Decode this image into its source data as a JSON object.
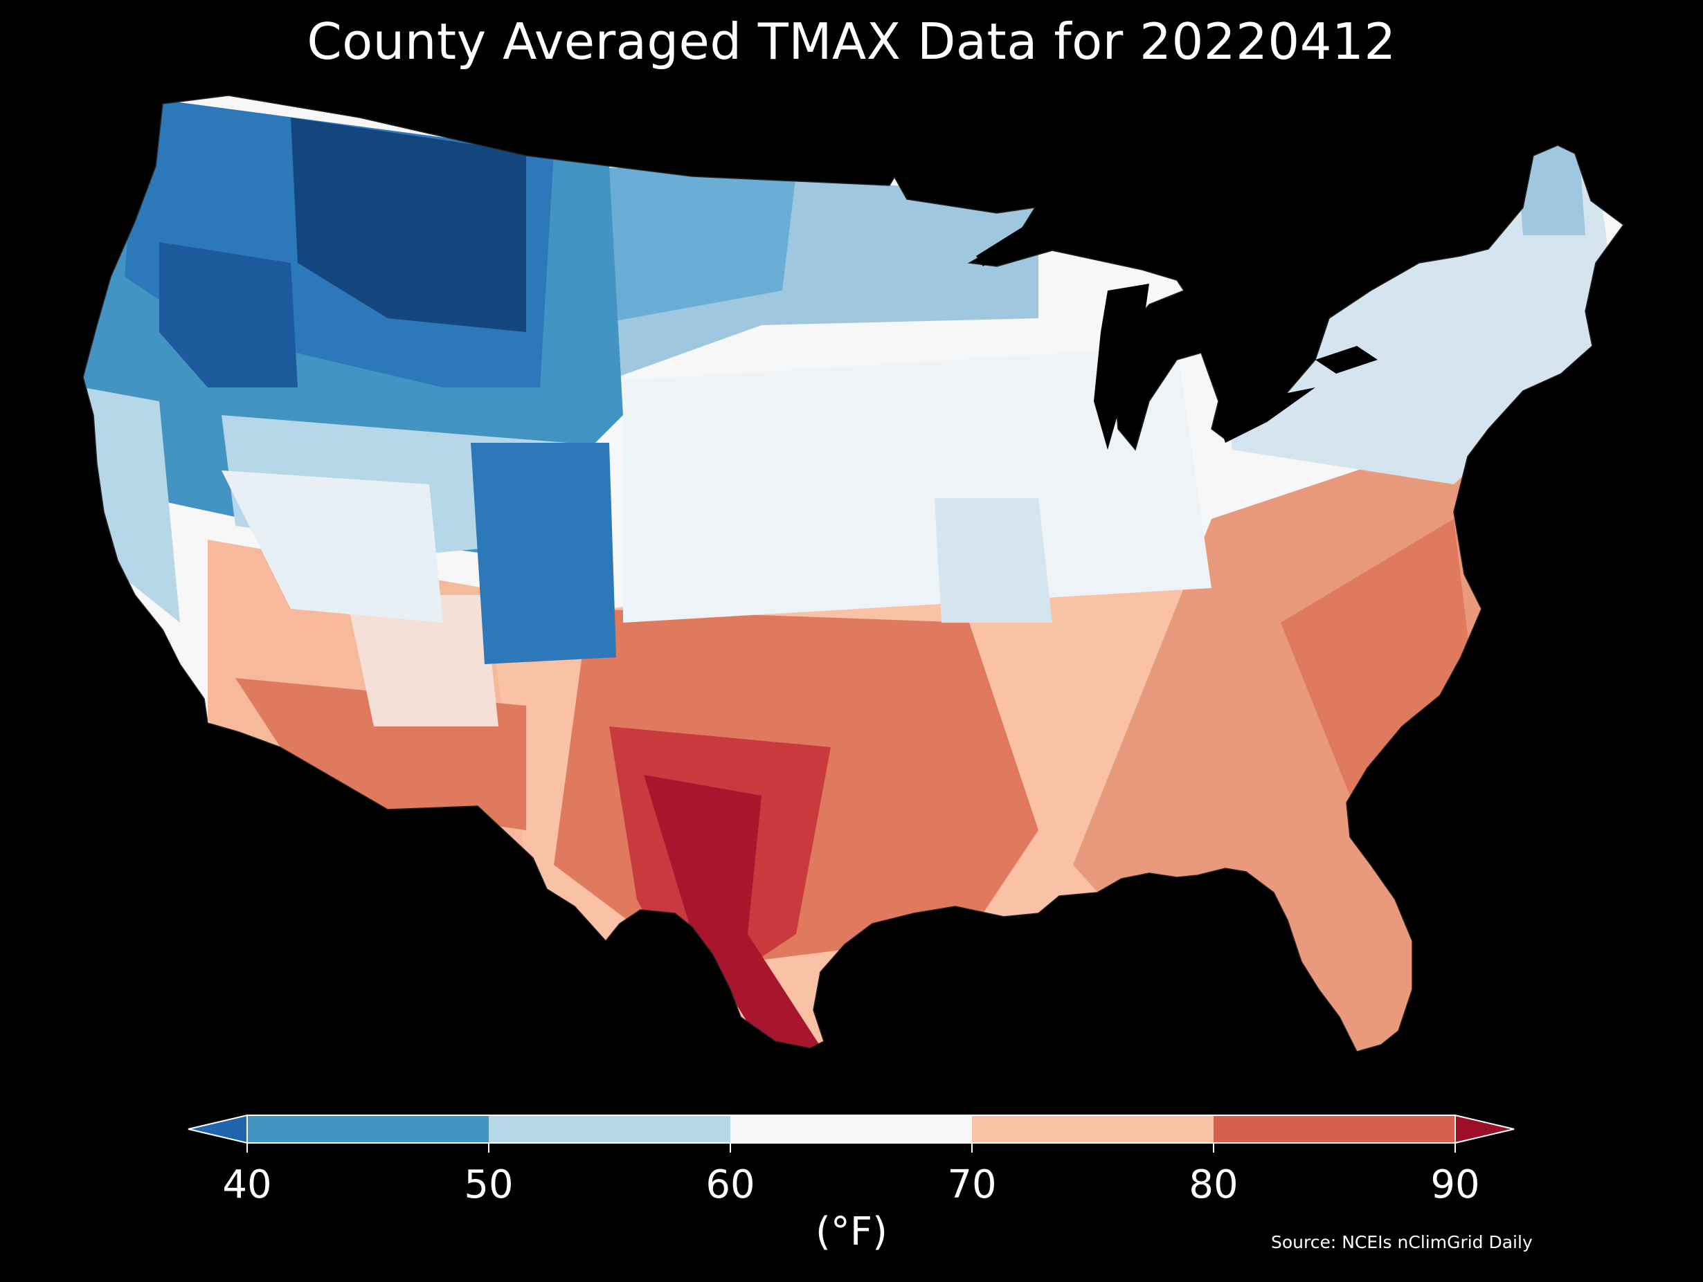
{
  "title": "County Averaged TMAX Data for 20220412",
  "source": "Source: NCEIs nClimGrid Daily",
  "colorbar": {
    "unit_label": "(°F)",
    "tick_labels": [
      "40",
      "50",
      "60",
      "70",
      "80",
      "90"
    ],
    "bins": [
      {
        "range": "<40",
        "color": "#2166ac"
      },
      {
        "range": "40-50",
        "color": "#4393c3"
      },
      {
        "range": "50-60",
        "color": "#b6d7e8"
      },
      {
        "range": "60-70",
        "color": "#f7f7f7"
      },
      {
        "range": "70-80",
        "color": "#f9c2a6"
      },
      {
        "range": "80-90",
        "color": "#d6604d"
      },
      {
        "range": ">90",
        "color": "#9b1027"
      }
    ],
    "extend": "both"
  },
  "map": {
    "region": "Contiguous United States",
    "unit": "county",
    "variable": "TMAX",
    "background_color": "#000000",
    "border_color": "#1a1a1a",
    "regional_values_F": [
      {
        "region": "Northern Rockies / Montana",
        "approx_tmax": 30
      },
      {
        "region": "Idaho / Wyoming",
        "approx_tmax": 38
      },
      {
        "region": "Pacific Northwest coast",
        "approx_tmax": 48
      },
      {
        "region": "North Dakota / Minnesota",
        "approx_tmax": 48
      },
      {
        "region": "Nevada / Utah",
        "approx_tmax": 58
      },
      {
        "region": "Colorado",
        "approx_tmax": 50
      },
      {
        "region": "Iowa / Wisconsin / Michigan",
        "approx_tmax": 62
      },
      {
        "region": "Northeast / New England",
        "approx_tmax": 57
      },
      {
        "region": "Ohio Valley",
        "approx_tmax": 63
      },
      {
        "region": "Southern California / Arizona",
        "approx_tmax": 77
      },
      {
        "region": "Oklahoma / Kansas",
        "approx_tmax": 75
      },
      {
        "region": "Texas",
        "approx_tmax": 87
      },
      {
        "region": "South Texas",
        "approx_tmax": 93
      },
      {
        "region": "Southeast / Carolinas",
        "approx_tmax": 80
      },
      {
        "region": "Florida",
        "approx_tmax": 81
      }
    ]
  }
}
